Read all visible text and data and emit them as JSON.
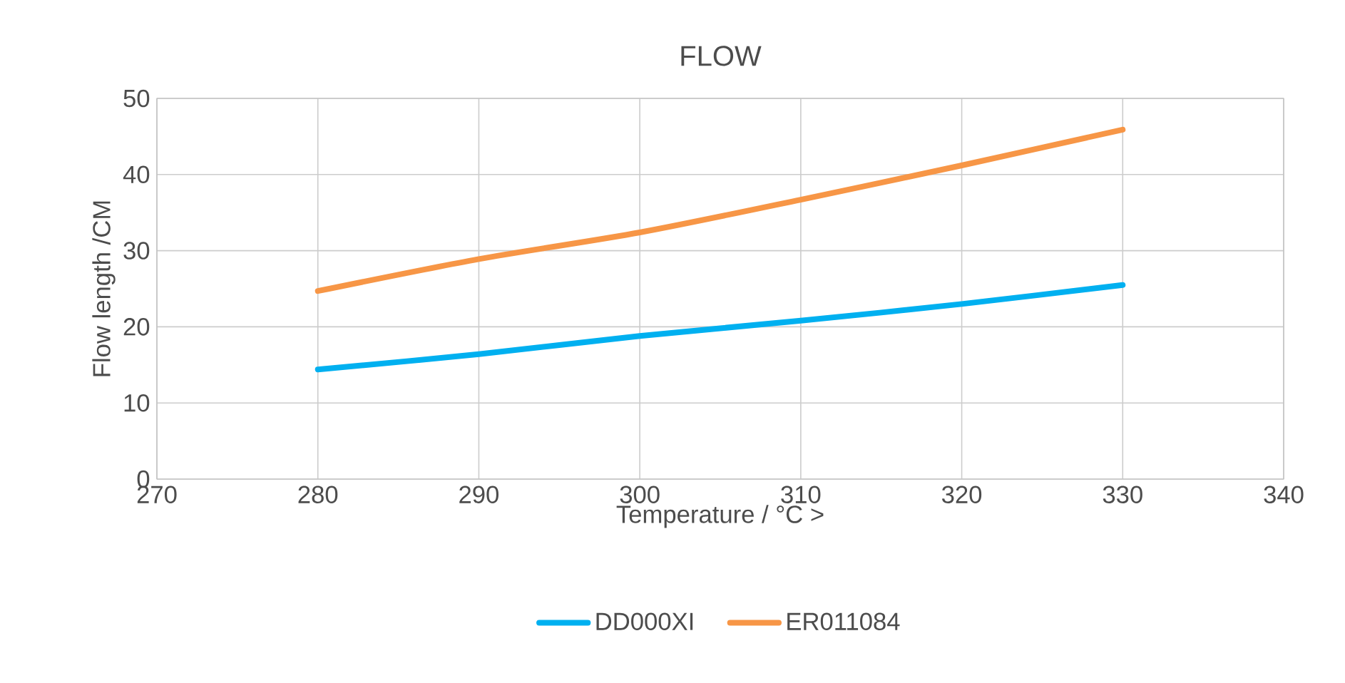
{
  "chart_data": {
    "type": "line",
    "title": "FLOW",
    "xlabel": "Temperature / °C >",
    "ylabel": "Flow length /CM",
    "x": [
      280,
      290,
      300,
      310,
      320,
      330
    ],
    "series": [
      {
        "name": "DD000XI",
        "color": "#00b0f0",
        "values": [
          14.4,
          16.4,
          18.8,
          20.8,
          23.0,
          25.5
        ]
      },
      {
        "name": "ER011084",
        "color": "#f79646",
        "values": [
          24.7,
          28.9,
          32.4,
          36.7,
          41.2,
          45.9
        ]
      }
    ],
    "xlim": [
      270,
      340
    ],
    "xticks": [
      270,
      280,
      290,
      300,
      310,
      320,
      330,
      340
    ],
    "ylim": [
      0,
      50
    ],
    "yticks": [
      0,
      10,
      20,
      30,
      40,
      50
    ],
    "grid": true,
    "legend": "bottom",
    "marker": "none",
    "line_style": "solid"
  }
}
